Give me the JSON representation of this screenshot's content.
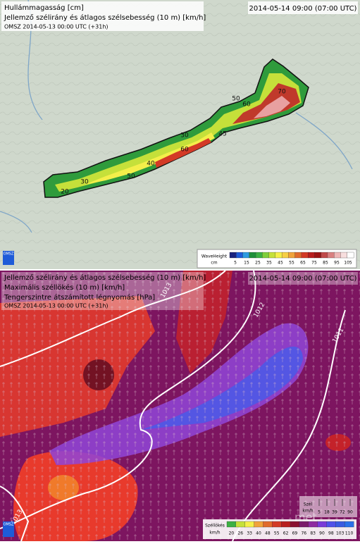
{
  "panels": [
    {
      "title_lines": [
        "Hullámmagasság [cm]",
        "Jellemző szélirány és átlagos szélsebesség (10 m) [km/h]"
      ],
      "run": "OMSZ 2014-05-13 00:00 UTC (+31h)",
      "valid_time": "2014-05-14 09:00 (07:00 UTC)",
      "logo": "OMSZ",
      "contour_labels": [
        "70",
        "60",
        "50",
        "45",
        "30",
        "60",
        "40",
        "50",
        "30",
        "20"
      ],
      "legend": {
        "title": "WaveHeight",
        "unit": "cm",
        "ticks": [
          "5",
          "15",
          "25",
          "35",
          "45",
          "55",
          "65",
          "75",
          "85",
          "95",
          "105"
        ],
        "colors": [
          "#1a237e",
          "#1e5bd8",
          "#2e9be0",
          "#1f8f3a",
          "#3cb043",
          "#7fcf3c",
          "#c5e03a",
          "#f4ef4a",
          "#f6cf45",
          "#f0a23b",
          "#e06a2c",
          "#d33a26",
          "#b81e1e",
          "#9c1515",
          "#c04a4a",
          "#d98080",
          "#eeb7b7",
          "#f7dede",
          "#ffffff"
        ]
      }
    },
    {
      "title_lines": [
        "Jellemző szélirány és átlagos szélsebesség (10 m) [km/h]",
        "Maximális széllökés (10 m) [km/h]",
        "Tengerszintre átszámított légnyomás [hPa]"
      ],
      "run": "OMSZ 2014-05-13 00:00 UTC (+31h)",
      "valid_time": "2014-05-14 09:00 (07:00 UTC)",
      "logo": "OMSZ",
      "isobar_labels": [
        "1013",
        "1012",
        "1011",
        "1013"
      ],
      "wind_legend": {
        "title": "Szél",
        "unit": "km/h",
        "ticks": [
          "5",
          "18",
          "39",
          "72",
          "90"
        ]
      },
      "legend": {
        "title": "Széllökés",
        "unit": "km/h",
        "ticks": [
          "20",
          "26",
          "33",
          "40",
          "48",
          "55",
          "62",
          "69",
          "76",
          "83",
          "90",
          "98",
          "103",
          "110"
        ],
        "colors": [
          "#3cb043",
          "#c5e03a",
          "#f4ef4a",
          "#f0a23b",
          "#e06a2c",
          "#d33a26",
          "#b81e1e",
          "#8a1030",
          "#7a1a6a",
          "#8e2aa0",
          "#7a3ad8",
          "#5050e8",
          "#3a5ae0",
          "#2a70e8"
        ]
      },
      "watermark": "met"
    }
  ]
}
